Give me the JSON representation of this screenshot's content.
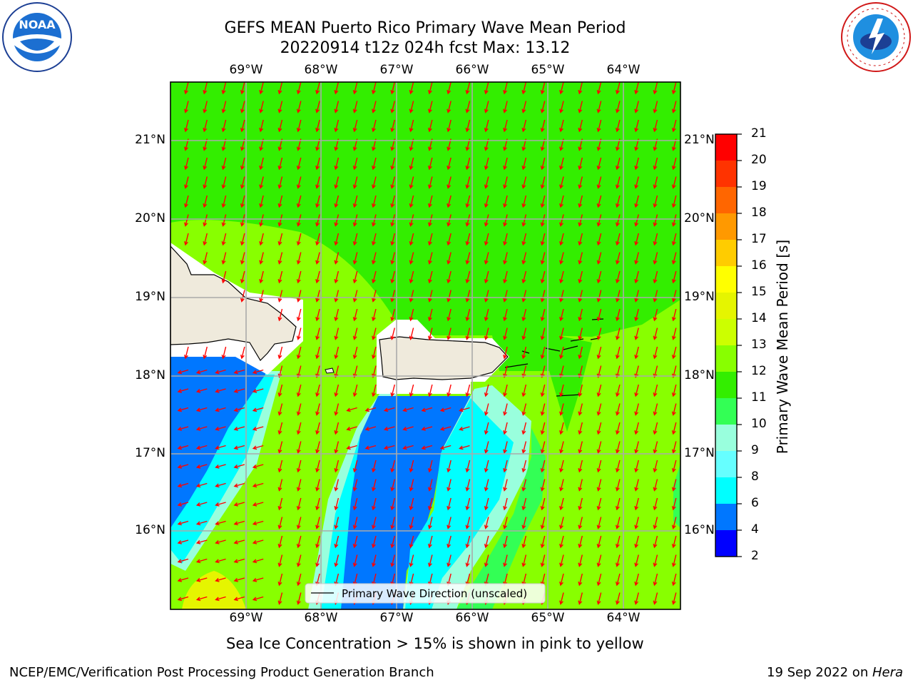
{
  "header": {
    "title_line1": "GEFS MEAN Puerto Rico Primary Wave Mean Period",
    "title_line2": "20220914 t12z 024h fcst   Max: 13.12"
  },
  "logos": {
    "left": {
      "icon": "noaa-logo-icon",
      "text": "NOAA"
    },
    "right": {
      "icon": "nws-logo-icon",
      "text": "NATIONAL WEATHER SERVICE"
    }
  },
  "map": {
    "lon_ticks": [
      "69°W",
      "68°W",
      "67°W",
      "66°W",
      "65°W",
      "64°W"
    ],
    "lat_ticks": [
      "21°N",
      "20°N",
      "19°N",
      "18°N",
      "17°N",
      "16°N"
    ],
    "legend_label": "Primary Wave Direction (unscaled)",
    "arrow_color": "#ff0000"
  },
  "colorbar": {
    "label": "Primary Wave Mean Period [s]",
    "ticks": [
      "21",
      "20",
      "19",
      "18",
      "17",
      "16",
      "15",
      "14",
      "13",
      "12",
      "11",
      "10",
      "9",
      "8",
      "6",
      "4",
      "2"
    ],
    "colors": [
      "#ff0000",
      "#ff3300",
      "#ff6600",
      "#ff9900",
      "#ffcc00",
      "#ffff00",
      "#e5f500",
      "#ccff00",
      "#88ff00",
      "#33ee00",
      "#33ff55",
      "#99ffdd",
      "#66ffff",
      "#00ffff",
      "#0077ff",
      "#0000ff"
    ]
  },
  "notes": {
    "sea_ice": "Sea Ice Concentration > 15% is shown in pink to yellow"
  },
  "footer": {
    "left": "NCEP/EMC/Verification Post Processing Product Generation Branch",
    "right_prefix": "19 Sep 2022 on ",
    "right_machine": "Hera"
  }
}
